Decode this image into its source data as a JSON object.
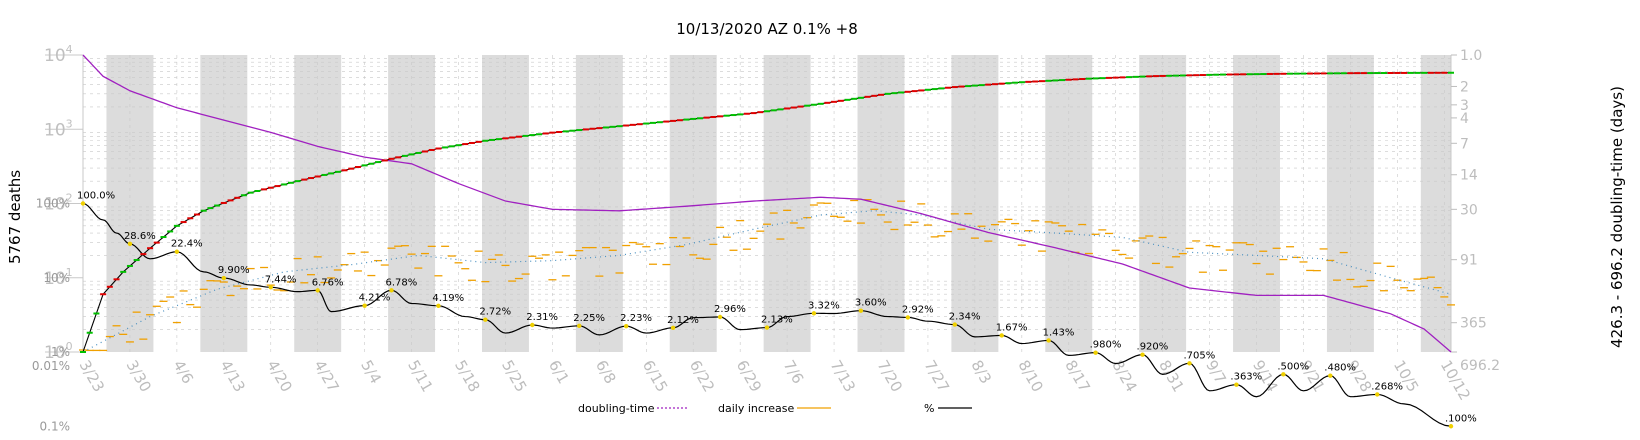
{
  "chart_data": {
    "type": "line",
    "title": "10/13/2020 AZ 0.1% +8",
    "ylabel": "5767 deaths",
    "y2label": "426.3 - 696.2 doubling-time (days)",
    "y_scale": "log",
    "ylim": [
      1,
      10000
    ],
    "left_major_ticks": [
      {
        "value": 1,
        "base": "10",
        "exp": "0"
      },
      {
        "value": 10,
        "base": "10",
        "exp": "1"
      },
      {
        "value": 100,
        "base": "10",
        "exp": "2"
      },
      {
        "value": 1000,
        "base": "10",
        "exp": "3"
      },
      {
        "value": 10000,
        "base": "10",
        "exp": "4"
      }
    ],
    "percent_ticks": [
      {
        "label": "100%",
        "value": 100
      },
      {
        "label": "10%",
        "value": 10
      },
      {
        "label": "1%",
        "value": 1
      },
      {
        "label": "0.1%",
        "value": 0.1
      },
      {
        "label": "0.01%",
        "value": 0.01
      }
    ],
    "right_ticks": [
      {
        "label": "1.0",
        "days": 1
      },
      {
        "label": "2",
        "days": 2
      },
      {
        "label": "3",
        "days": 3
      },
      {
        "label": "4",
        "days": 4
      },
      {
        "label": "7",
        "days": 7
      },
      {
        "label": "14",
        "days": 14
      },
      {
        "label": "30",
        "days": 30
      },
      {
        "label": "91",
        "days": 91
      },
      {
        "label": "365",
        "days": 365
      },
      {
        "label": "696.2",
        "days": 696.2
      }
    ],
    "x_tick_labels": [
      "3/23",
      "3/30",
      "4/6",
      "4/13",
      "4/20",
      "4/27",
      "5/4",
      "5/11",
      "5/18",
      "5/25",
      "6/1",
      "6/8",
      "6/15",
      "6/22",
      "6/29",
      "7/6",
      "7/13",
      "7/20",
      "7/27",
      "8/3",
      "8/10",
      "8/17",
      "8/24",
      "8/31",
      "9/7",
      "9/14",
      "9/21",
      "9/28",
      "10/5",
      "10/12"
    ],
    "x_range_days": [
      0,
      204
    ],
    "grid": true,
    "legend_position": "bottom",
    "legend": [
      {
        "name": "doubling-time",
        "color": "#a020c0",
        "style": "dotted"
      },
      {
        "name": "daily increase",
        "color": "#f0a000",
        "style": "solid"
      },
      {
        "name": "%",
        "color": "#000000",
        "style": "solid"
      }
    ],
    "cumulative_deaths_anchors": [
      {
        "day": 0,
        "value": 1
      },
      {
        "day": 3,
        "value": 6
      },
      {
        "day": 6,
        "value": 12
      },
      {
        "day": 10,
        "value": 25
      },
      {
        "day": 14,
        "value": 50
      },
      {
        "day": 18,
        "value": 80
      },
      {
        "day": 25,
        "value": 140
      },
      {
        "day": 32,
        "value": 200
      },
      {
        "day": 39,
        "value": 280
      },
      {
        "day": 46,
        "value": 400
      },
      {
        "day": 53,
        "value": 550
      },
      {
        "day": 60,
        "value": 700
      },
      {
        "day": 70,
        "value": 900
      },
      {
        "day": 80,
        "value": 1100
      },
      {
        "day": 90,
        "value": 1350
      },
      {
        "day": 100,
        "value": 1650
      },
      {
        "day": 110,
        "value": 2200
      },
      {
        "day": 120,
        "value": 3000
      },
      {
        "day": 130,
        "value": 3700
      },
      {
        "day": 140,
        "value": 4300
      },
      {
        "day": 150,
        "value": 4800
      },
      {
        "day": 160,
        "value": 5200
      },
      {
        "day": 170,
        "value": 5450
      },
      {
        "day": 180,
        "value": 5600
      },
      {
        "day": 190,
        "value": 5700
      },
      {
        "day": 204,
        "value": 5767
      }
    ],
    "percent_anchors": [
      {
        "day": 0,
        "value": 100
      },
      {
        "day": 3,
        "value": 60
      },
      {
        "day": 5,
        "value": 40
      },
      {
        "day": 7,
        "value": 28.6
      },
      {
        "day": 10,
        "value": 18
      },
      {
        "day": 14,
        "value": 22.4
      },
      {
        "day": 18,
        "value": 12
      },
      {
        "day": 21,
        "value": 9.9
      },
      {
        "day": 25,
        "value": 8
      },
      {
        "day": 28,
        "value": 7.44
      },
      {
        "day": 32,
        "value": 6.5
      },
      {
        "day": 35,
        "value": 6.76
      },
      {
        "day": 37,
        "value": 3.5
      },
      {
        "day": 42,
        "value": 4.21
      },
      {
        "day": 46,
        "value": 6.78
      },
      {
        "day": 49,
        "value": 4.5
      },
      {
        "day": 53,
        "value": 4.19
      },
      {
        "day": 57,
        "value": 3
      },
      {
        "day": 60,
        "value": 2.72
      },
      {
        "day": 63,
        "value": 1.8
      },
      {
        "day": 67,
        "value": 2.31
      },
      {
        "day": 70,
        "value": 2.1
      },
      {
        "day": 74,
        "value": 2.25
      },
      {
        "day": 77,
        "value": 1.7
      },
      {
        "day": 81,
        "value": 2.23
      },
      {
        "day": 84,
        "value": 1.8
      },
      {
        "day": 88,
        "value": 2.12
      },
      {
        "day": 91,
        "value": 2.9
      },
      {
        "day": 95,
        "value": 2.96
      },
      {
        "day": 98,
        "value": 2.0
      },
      {
        "day": 102,
        "value": 2.13
      },
      {
        "day": 105,
        "value": 3.0
      },
      {
        "day": 109,
        "value": 3.32
      },
      {
        "day": 112,
        "value": 3.3
      },
      {
        "day": 116,
        "value": 3.6
      },
      {
        "day": 120,
        "value": 3.0
      },
      {
        "day": 123,
        "value": 2.92
      },
      {
        "day": 126,
        "value": 2.6
      },
      {
        "day": 130,
        "value": 2.34
      },
      {
        "day": 133,
        "value": 1.6
      },
      {
        "day": 137,
        "value": 1.67
      },
      {
        "day": 140,
        "value": 1.3
      },
      {
        "day": 144,
        "value": 1.43
      },
      {
        "day": 147,
        "value": 0.9
      },
      {
        "day": 151,
        "value": 0.98
      },
      {
        "day": 154,
        "value": 0.7
      },
      {
        "day": 158,
        "value": 0.92
      },
      {
        "day": 161,
        "value": 0.5
      },
      {
        "day": 165,
        "value": 0.705
      },
      {
        "day": 168,
        "value": 0.3
      },
      {
        "day": 172,
        "value": 0.363
      },
      {
        "day": 175,
        "value": 0.25
      },
      {
        "day": 179,
        "value": 0.5
      },
      {
        "day": 182,
        "value": 0.3
      },
      {
        "day": 186,
        "value": 0.48
      },
      {
        "day": 189,
        "value": 0.25
      },
      {
        "day": 193,
        "value": 0.268
      },
      {
        "day": 197,
        "value": 0.2
      },
      {
        "day": 204,
        "value": 0.1
      }
    ],
    "doubling_time_anchors": [
      {
        "day": 0,
        "days": 1.0
      },
      {
        "day": 3,
        "days": 1.6
      },
      {
        "day": 7,
        "days": 2.2
      },
      {
        "day": 14,
        "days": 3.2
      },
      {
        "day": 21,
        "days": 4.2
      },
      {
        "day": 28,
        "days": 5.5
      },
      {
        "day": 35,
        "days": 7.5
      },
      {
        "day": 42,
        "days": 9.5
      },
      {
        "day": 49,
        "days": 11
      },
      {
        "day": 56,
        "days": 17
      },
      {
        "day": 63,
        "days": 25
      },
      {
        "day": 70,
        "days": 30
      },
      {
        "day": 80,
        "days": 31
      },
      {
        "day": 90,
        "days": 28
      },
      {
        "day": 100,
        "days": 25
      },
      {
        "day": 110,
        "days": 23
      },
      {
        "day": 116,
        "days": 24
      },
      {
        "day": 125,
        "days": 33
      },
      {
        "day": 135,
        "days": 50
      },
      {
        "day": 145,
        "days": 70
      },
      {
        "day": 155,
        "days": 100
      },
      {
        "day": 165,
        "days": 170
      },
      {
        "day": 175,
        "days": 200
      },
      {
        "day": 185,
        "days": 200
      },
      {
        "day": 195,
        "days": 300
      },
      {
        "day": 200,
        "days": 420
      },
      {
        "day": 204,
        "days": 696.2
      }
    ],
    "daily_increase_7day_anchors": [
      {
        "day": 0,
        "value": 1
      },
      {
        "day": 10,
        "value": 3
      },
      {
        "day": 20,
        "value": 7
      },
      {
        "day": 30,
        "value": 12
      },
      {
        "day": 40,
        "value": 15
      },
      {
        "day": 50,
        "value": 20
      },
      {
        "day": 60,
        "value": 16
      },
      {
        "day": 70,
        "value": 17
      },
      {
        "day": 80,
        "value": 20
      },
      {
        "day": 90,
        "value": 28
      },
      {
        "day": 100,
        "value": 45
      },
      {
        "day": 110,
        "value": 70
      },
      {
        "day": 118,
        "value": 80
      },
      {
        "day": 125,
        "value": 70
      },
      {
        "day": 135,
        "value": 45
      },
      {
        "day": 145,
        "value": 40
      },
      {
        "day": 155,
        "value": 35
      },
      {
        "day": 165,
        "value": 22
      },
      {
        "day": 175,
        "value": 20
      },
      {
        "day": 185,
        "value": 18
      },
      {
        "day": 195,
        "value": 10
      },
      {
        "day": 204,
        "value": 6
      }
    ],
    "annotations": [
      {
        "day": 0,
        "value": 100,
        "text": "100.0%"
      },
      {
        "day": 7,
        "value": 28.6,
        "text": "28.6%"
      },
      {
        "day": 14,
        "value": 22.4,
        "text": "22.4%"
      },
      {
        "day": 21,
        "value": 9.9,
        "text": "9.90%"
      },
      {
        "day": 28,
        "value": 7.44,
        "text": "7.44%"
      },
      {
        "day": 35,
        "value": 6.76,
        "text": "6.76%"
      },
      {
        "day": 42,
        "value": 4.21,
        "text": "4.21%"
      },
      {
        "day": 46,
        "value": 6.78,
        "text": "6.78%"
      },
      {
        "day": 53,
        "value": 4.19,
        "text": "4.19%"
      },
      {
        "day": 60,
        "value": 2.72,
        "text": "2.72%"
      },
      {
        "day": 67,
        "value": 2.31,
        "text": "2.31%"
      },
      {
        "day": 74,
        "value": 2.25,
        "text": "2.25%"
      },
      {
        "day": 81,
        "value": 2.23,
        "text": "2.23%"
      },
      {
        "day": 88,
        "value": 2.12,
        "text": "2.12%"
      },
      {
        "day": 95,
        "value": 2.96,
        "text": "2.96%"
      },
      {
        "day": 102,
        "value": 2.13,
        "text": "2.13%"
      },
      {
        "day": 109,
        "value": 3.32,
        "text": "3.32%"
      },
      {
        "day": 116,
        "value": 3.6,
        "text": "3.60%"
      },
      {
        "day": 123,
        "value": 2.92,
        "text": "2.92%"
      },
      {
        "day": 130,
        "value": 2.34,
        "text": "2.34%"
      },
      {
        "day": 137,
        "value": 1.67,
        "text": "1.67%"
      },
      {
        "day": 144,
        "value": 1.43,
        "text": "1.43%"
      },
      {
        "day": 151,
        "value": 0.98,
        "text": ".980%"
      },
      {
        "day": 158,
        "value": 0.92,
        "text": ".920%"
      },
      {
        "day": 165,
        "value": 0.705,
        "text": ".705%"
      },
      {
        "day": 172,
        "value": 0.363,
        "text": ".363%"
      },
      {
        "day": 179,
        "value": 0.5,
        "text": ".500%"
      },
      {
        "day": 186,
        "value": 0.48,
        "text": ".480%"
      },
      {
        "day": 193,
        "value": 0.268,
        "text": ".268%"
      },
      {
        "day": 204,
        "value": 0.1,
        "text": ".100%"
      }
    ],
    "colors": {
      "cumulative_up": "#00c000",
      "cumulative_down": "#e00000",
      "percent": "#000000",
      "doubling_time": "#a020c0",
      "daily_increase": "#f0a000",
      "daily_avg": "#4a90c0",
      "week_band": "#dcdcdc",
      "peak_marker": "#f0d000"
    }
  }
}
